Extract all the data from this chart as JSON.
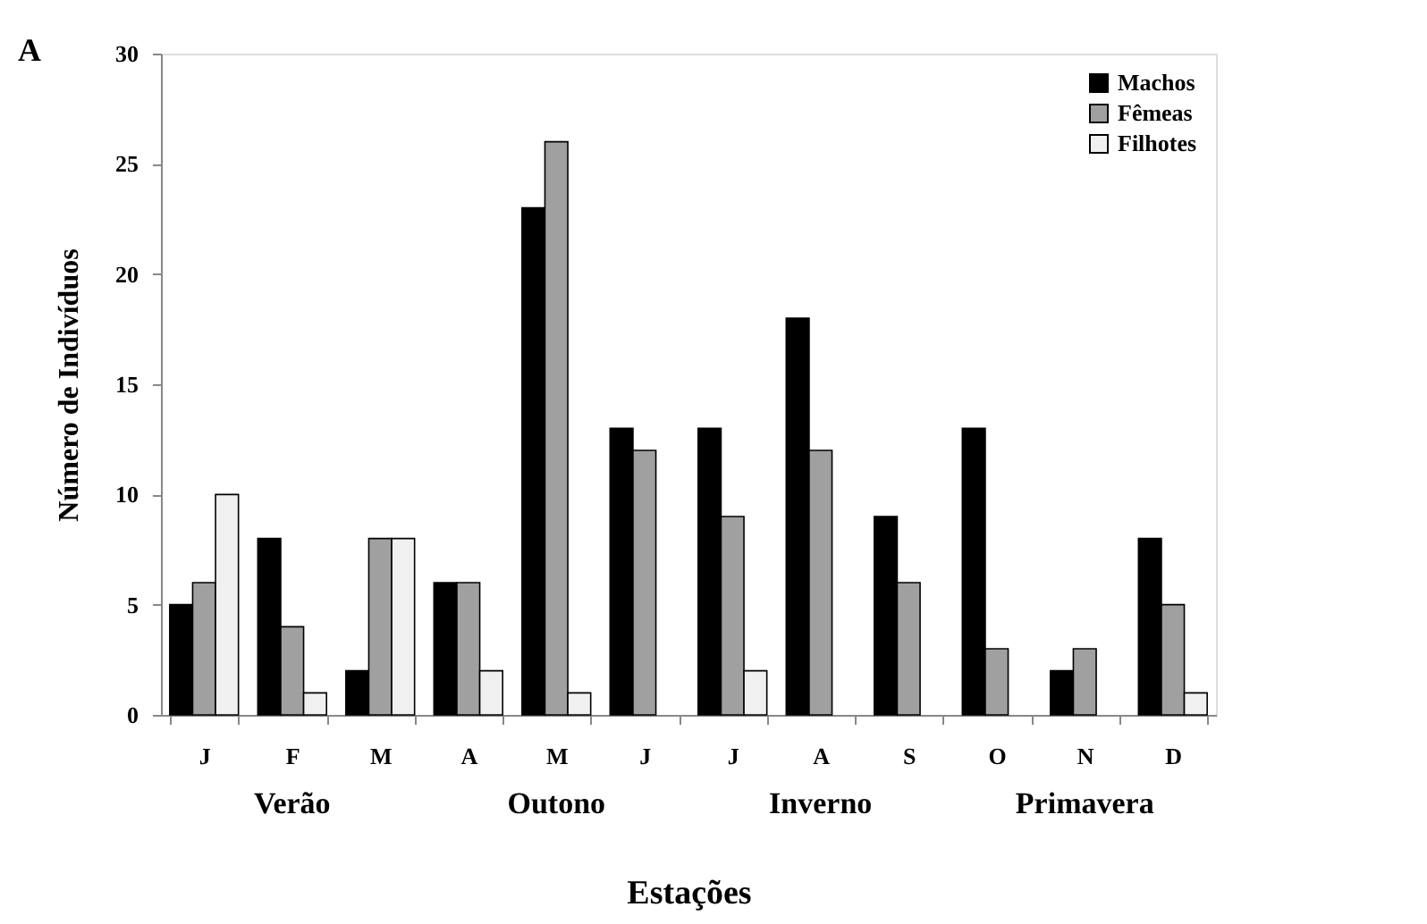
{
  "chart_data": {
    "type": "bar",
    "categories": [
      "J",
      "F",
      "M",
      "A",
      "M",
      "J",
      "J",
      "A",
      "S",
      "O",
      "N",
      "D"
    ],
    "xlabel": "Estações",
    "ylabel": "Número de Indivíduos",
    "series": [
      {
        "name": "Machos",
        "color": "#000000",
        "values": [
          5,
          8,
          2,
          6,
          23,
          13,
          13,
          18,
          9,
          13,
          2,
          8
        ]
      },
      {
        "name": "Fêmeas",
        "color": "#a0a0a0",
        "values": [
          6,
          4,
          8,
          6,
          26,
          12,
          9,
          12,
          6,
          3,
          3,
          5
        ]
      },
      {
        "name": "Filhotes",
        "color": "#f0f0f0",
        "values": [
          10,
          1,
          8,
          2,
          1,
          null,
          2,
          null,
          null,
          null,
          null,
          1
        ]
      }
    ],
    "ylim": [
      0,
      30
    ],
    "yticks": [
      0,
      5,
      10,
      15,
      20,
      25,
      30
    ],
    "annotations": [
      "A",
      "Verão",
      "Outono",
      "Inverno",
      "Primavera"
    ],
    "legend": "top right",
    "grid": false
  }
}
